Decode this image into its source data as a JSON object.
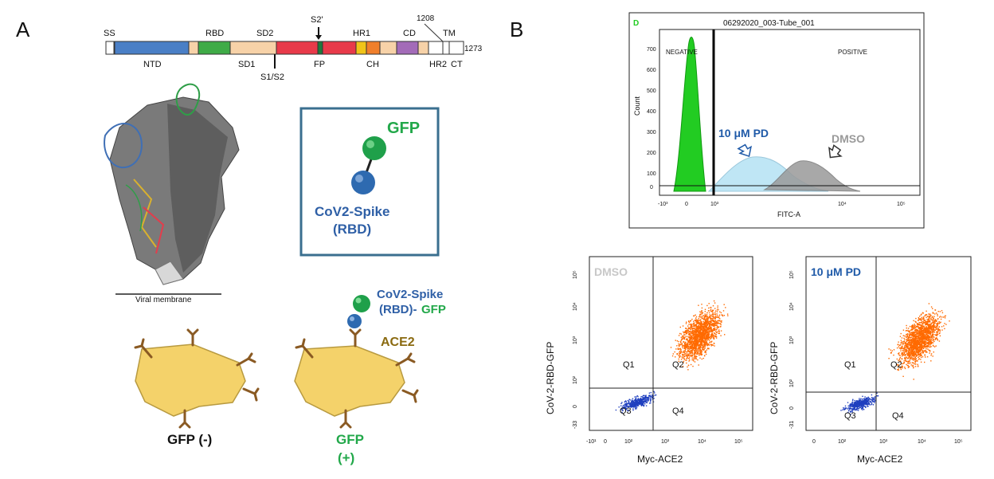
{
  "panels": {
    "a": "A",
    "b": "B"
  },
  "domain_map": {
    "top_labels": [
      "SS",
      "RBD",
      "SD2",
      "S2'",
      "HR1",
      "CD",
      "1208",
      "TM"
    ],
    "bottom_labels": [
      "NTD",
      "SD1",
      "S1/S2",
      "FP",
      "CH",
      "HR2",
      "CT"
    ],
    "end_label": "1273"
  },
  "structure": {
    "membrane_label": "Viral membrane"
  },
  "construct_box": {
    "gfp": "GFP",
    "spike_line1": "CoV2-Spike",
    "spike_line2": "(RBD)"
  },
  "cells": {
    "bound_line1": "CoV2-Spike",
    "bound_line2a": "(RBD)-",
    "bound_line2b": "GFP",
    "receptor": "ACE2",
    "negative": "GFP (-)",
    "positive_line1": "GFP",
    "positive_line2": "(+)"
  },
  "histogram": {
    "corner": "D",
    "title": "06292020_003-Tube_001",
    "negative": "NEGATIVE",
    "positive": "POSITIVE",
    "ylabel": "Count",
    "xlabel": "FITC-A",
    "yticks": [
      "700",
      "600",
      "500",
      "400",
      "300",
      "200",
      "100",
      "0"
    ],
    "xticks": [
      "-10³",
      "0",
      "10³",
      "10⁴",
      "10⁵"
    ],
    "pd_label": "10 μM PD",
    "dmso_label": "DMSO",
    "colors": {
      "negative": "#22cc22",
      "pd": "#bfe6f5",
      "dmso": "#9a9a9a",
      "gate": "#000000"
    }
  },
  "scatter_plots": [
    {
      "condition": "DMSO",
      "xlabel": "Myc-ACE2",
      "ylabel": "CoV-2-RBD-GFP",
      "quadrants": [
        "Q1",
        "Q2",
        "Q3",
        "Q4"
      ],
      "yticks": [
        "10⁵",
        "10⁴",
        "10³",
        "10²",
        "0",
        "-33"
      ],
      "xticks": [
        "-10¹",
        "0",
        "10²",
        "10³",
        "10⁴",
        "10⁵"
      ],
      "colors": {
        "positive": "#ff6a00",
        "negative": "#1f3fbf"
      }
    },
    {
      "condition": "10 μM PD",
      "xlabel": "Myc-ACE2",
      "ylabel": "CoV-2-RBD-GFP",
      "quadrants": [
        "Q1",
        "Q2",
        "Q3",
        "Q4"
      ],
      "yticks": [
        "10⁵",
        "10⁴",
        "10³",
        "10²",
        "0",
        "-31"
      ],
      "xticks": [
        "0",
        "10²",
        "10³",
        "10⁴",
        "10⁵"
      ],
      "colors": {
        "positive": "#ff6a00",
        "negative": "#1f3fbf"
      }
    }
  ]
}
